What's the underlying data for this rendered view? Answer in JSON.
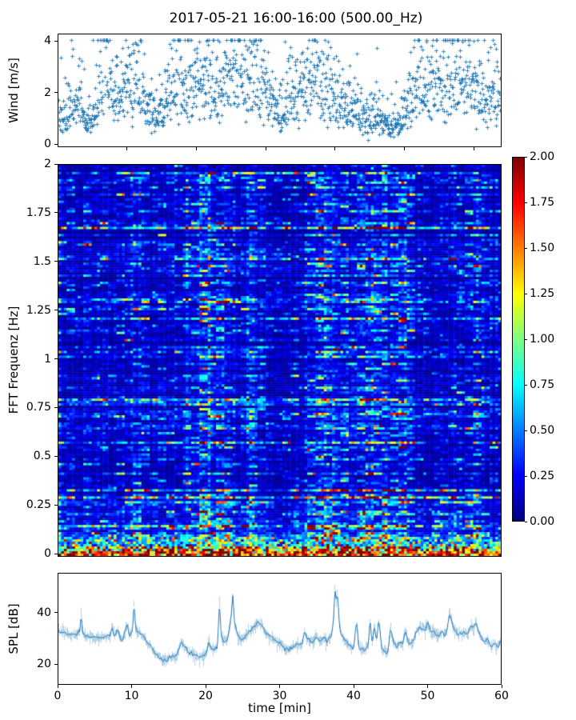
{
  "title": "2017-05-21 16:00-16:00 (500.00_Hz)",
  "figure": {
    "background": "#ffffff",
    "accent_color": "#1f77b4",
    "axes_color": "#000000"
  },
  "chart_data": [
    {
      "id": "wind",
      "type": "scatter",
      "ylabel": "Wind [m/s]",
      "marker": "+",
      "color": "#1f77b4",
      "xlim": [
        0,
        64
      ],
      "ylim": [
        -0.12,
        4.28
      ],
      "yticks": [
        {
          "v": 0,
          "label": "0"
        },
        {
          "v": 2,
          "label": "2"
        },
        {
          "v": 4,
          "label": "4"
        }
      ],
      "xtick_values": [
        10,
        20,
        30,
        40,
        50,
        60
      ],
      "n_points": 1500,
      "seed": 42,
      "noise_sigma": 0.42,
      "envelope": {
        "t0": 0,
        "dt": 1,
        "v": [
          1.3,
          1.1,
          1.6,
          2.0,
          1.0,
          1.0,
          2.4,
          2.8,
          2.0,
          1.6,
          2.4,
          2.8,
          1.9,
          1.3,
          1.2,
          1.4,
          2.0,
          2.4,
          2.2,
          2.3,
          2.6,
          2.7,
          2.4,
          2.4,
          2.3,
          2.8,
          2.9,
          2.5,
          3.0,
          2.7,
          2.0,
          1.6,
          1.4,
          1.6,
          1.8,
          2.0,
          2.7,
          2.8,
          2.3,
          1.9,
          1.7,
          1.5,
          1.3,
          1.2,
          1.1,
          1.0,
          1.1,
          1.0,
          0.9,
          0.8,
          1.0,
          1.9,
          2.3,
          2.2,
          2.4,
          2.6,
          2.3,
          2.5,
          2.9,
          2.6,
          2.2,
          1.9,
          2.2,
          2.0,
          1.6
        ]
      }
    },
    {
      "id": "spectrogram",
      "type": "heatmap",
      "ylabel": "FFT Frequenz [Hz]",
      "colormap": "jet",
      "clim": [
        0,
        2
      ],
      "xlim": [
        0,
        60
      ],
      "ylim": [
        -0.016,
        2.0
      ],
      "yticks": [
        {
          "v": 0,
          "label": "0"
        },
        {
          "v": 0.25,
          "label": "0.25"
        },
        {
          "v": 0.5,
          "label": "0.5"
        },
        {
          "v": 0.75,
          "label": "0.75"
        },
        {
          "v": 1,
          "label": "1"
        },
        {
          "v": 1.25,
          "label": "1.25"
        },
        {
          "v": 1.5,
          "label": "1.5"
        },
        {
          "v": 1.75,
          "label": "1.75"
        },
        {
          "v": 2,
          "label": "2"
        }
      ],
      "grid": {
        "cols": 160,
        "rows": 164
      },
      "seed": 7,
      "base_level": 0.125,
      "time_bands": [
        {
          "center": 10.3,
          "width": 0.7,
          "boost": 1.5
        },
        {
          "center": 20.0,
          "width": 1.3,
          "boost": 2.1
        },
        {
          "center": 23.0,
          "width": 0.7,
          "boost": 1.8
        },
        {
          "center": 25.8,
          "width": 0.8,
          "boost": 1.5
        },
        {
          "center": 27.6,
          "width": 0.7,
          "boost": 1.4
        },
        {
          "center": 36.0,
          "width": 1.4,
          "boost": 2.3
        },
        {
          "center": 42.8,
          "width": 2.2,
          "boost": 2.2
        },
        {
          "center": 47.0,
          "width": 0.8,
          "boost": 1.7
        },
        {
          "center": 57.0,
          "width": 1.0,
          "boost": 1.4
        },
        {
          "center": 31.5,
          "width": 2.5,
          "boost": 0.82
        },
        {
          "center": 5.0,
          "width": 3.0,
          "boost": 0.9
        }
      ],
      "low_freq_bands": [
        {
          "below_hz": 0.02,
          "level": 1.75,
          "sigma": 0.22
        },
        {
          "below_hz": 0.05,
          "level": 1.1,
          "sigma": 0.5
        },
        {
          "below_hz": 0.1,
          "level": 0.55,
          "sigma": 0.5
        }
      ],
      "colorbar": {
        "ticks": [
          {
            "v": 0,
            "label": "0.00"
          },
          {
            "v": 0.25,
            "label": "0.25"
          },
          {
            "v": 0.5,
            "label": "0.50"
          },
          {
            "v": 0.75,
            "label": "0.75"
          },
          {
            "v": 1,
            "label": "1.00"
          },
          {
            "v": 1.25,
            "label": "1.25"
          },
          {
            "v": 1.5,
            "label": "1.50"
          },
          {
            "v": 1.75,
            "label": "1.75"
          },
          {
            "v": 2,
            "label": "2.00"
          }
        ]
      }
    },
    {
      "id": "spl",
      "type": "line",
      "ylabel": "SPL [dB]",
      "xlabel": "time [min]",
      "color": "#1f77b4",
      "xlim": [
        0,
        60
      ],
      "ylim": [
        12,
        55.4
      ],
      "yticks": [
        {
          "v": 20,
          "label": "20"
        },
        {
          "v": 40,
          "label": "40"
        }
      ],
      "xticks": [
        {
          "v": 0,
          "label": "0"
        },
        {
          "v": 10,
          "label": "10"
        },
        {
          "v": 20,
          "label": "20"
        },
        {
          "v": 30,
          "label": "30"
        },
        {
          "v": 40,
          "label": "40"
        },
        {
          "v": 50,
          "label": "50"
        },
        {
          "v": 60,
          "label": "60"
        }
      ],
      "seed": 99,
      "fuzz_sigma": 1.15,
      "series": {
        "t": [
          0,
          0.5,
          1,
          1.5,
          2,
          2.5,
          2.9,
          3.0,
          3.2,
          3.6,
          4,
          4.5,
          5,
          5.5,
          6,
          6.5,
          7,
          7.2,
          7.5,
          8,
          8.3,
          8.7,
          9,
          9.2,
          9.6,
          10,
          10.2,
          10.4,
          10.8,
          11,
          11.5,
          12,
          12.5,
          13,
          13.5,
          14,
          14.5,
          15,
          15.5,
          16,
          16.3,
          16.6,
          17,
          17.5,
          18,
          18.5,
          19,
          19.5,
          20,
          20.3,
          20.6,
          21,
          21.5,
          21.8,
          22,
          22.4,
          22.8,
          23.1,
          23.4,
          23.6,
          23.8,
          24.2,
          24.6,
          25,
          25.5,
          26,
          26.5,
          27,
          27.5,
          28,
          28.5,
          29,
          29.5,
          30,
          30.5,
          31,
          31.5,
          32,
          32.5,
          33,
          33.3,
          33.6,
          34,
          34.5,
          35,
          35.5,
          36,
          36.5,
          37,
          37.3,
          37.45,
          37.6,
          37.8,
          38.1,
          38.5,
          39,
          39.5,
          40,
          40.4,
          40.65,
          40.9,
          41.3,
          41.7,
          42,
          42.2,
          42.5,
          42.8,
          43.1,
          43.4,
          43.8,
          44.2,
          44.6,
          45,
          45.4,
          45.8,
          46.2,
          46.6,
          47,
          47.5,
          48,
          48.5,
          49,
          49.3,
          49.7,
          50,
          50.5,
          51,
          51.5,
          52,
          52.2,
          52.6,
          53,
          53.5,
          54,
          54.5,
          55,
          55.4,
          55.8,
          56.2,
          56.6,
          57,
          57.4,
          57.8,
          58.2,
          58.6,
          59,
          59.5,
          60
        ],
        "v": [
          33,
          32.5,
          32,
          31.5,
          31,
          31.5,
          33,
          41,
          33,
          30.5,
          31,
          30.5,
          30,
          30.5,
          31,
          30.5,
          31,
          35,
          31,
          33.5,
          30,
          29.5,
          33,
          36,
          31,
          33,
          44,
          34,
          32.5,
          32,
          30.5,
          28,
          26.5,
          24.5,
          23,
          21.5,
          21.5,
          22,
          22.5,
          23,
          26,
          29,
          27,
          24.5,
          24,
          23.5,
          22.5,
          23,
          24,
          28.5,
          26,
          25.5,
          26.5,
          45,
          31,
          28.5,
          29,
          33,
          38,
          50,
          36,
          32,
          29.5,
          30,
          31.5,
          33,
          34.5,
          36,
          35,
          32.5,
          31,
          30,
          28.5,
          28,
          26.5,
          25.5,
          26,
          27,
          27.5,
          28,
          33,
          30,
          29.5,
          28.5,
          31,
          28.5,
          30,
          29,
          31.5,
          38,
          52,
          44,
          48,
          34,
          30.5,
          28.5,
          27,
          26,
          37,
          27,
          26,
          25.5,
          26,
          28,
          36,
          27.5,
          35,
          29,
          37,
          25.5,
          24.5,
          24,
          34,
          28,
          27,
          28,
          27.5,
          33,
          27.5,
          28.5,
          32.5,
          34.5,
          33.5,
          33,
          36.5,
          32.5,
          32,
          31,
          32.5,
          31.5,
          32,
          40,
          34,
          31.5,
          31.5,
          32,
          31,
          35,
          34,
          36,
          32,
          30,
          28.5,
          29.5,
          26.5,
          28,
          27,
          29
        ]
      }
    }
  ]
}
